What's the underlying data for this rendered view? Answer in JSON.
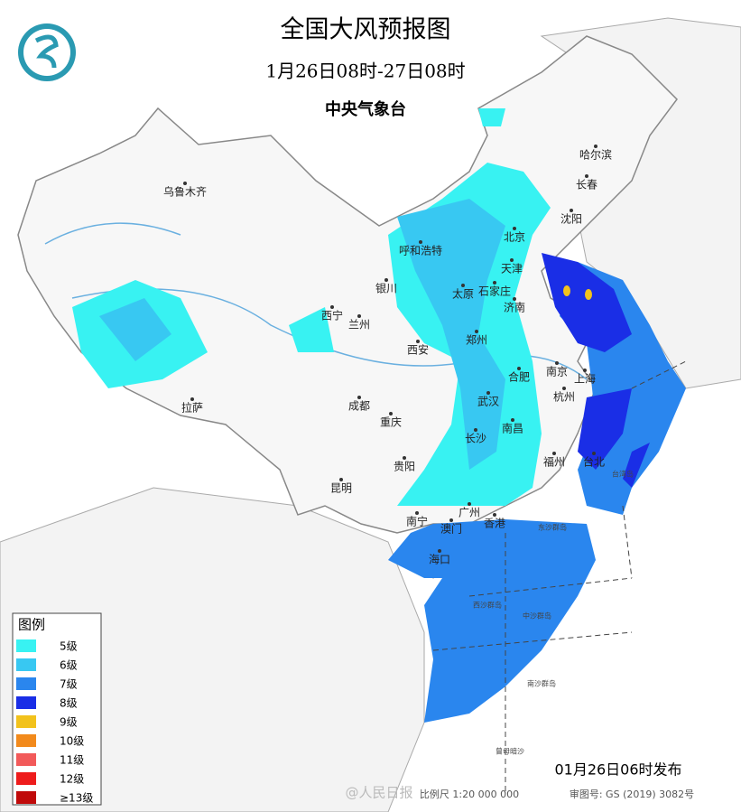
{
  "header": {
    "title": "全国大风预报图",
    "period": "1月26日08时-27日08时",
    "issuer": "中央气象台"
  },
  "legend": {
    "title": "图例",
    "items": [
      {
        "label": "5级",
        "color": "#38f2f2"
      },
      {
        "label": "6级",
        "color": "#38c8f2"
      },
      {
        "label": "7级",
        "color": "#2a86ee"
      },
      {
        "label": "8级",
        "color": "#1a2ee6"
      },
      {
        "label": "9级",
        "color": "#f2c21c"
      },
      {
        "label": "10级",
        "color": "#f28a1c"
      },
      {
        "label": "11级",
        "color": "#f25a5a"
      },
      {
        "label": "12级",
        "color": "#ee1c1c"
      },
      {
        "label": "≥13级",
        "color": "#c00a0a"
      }
    ]
  },
  "cities": [
    "乌鲁木齐",
    "哈尔滨",
    "长春",
    "沈阳",
    "呼和浩特",
    "北京",
    "天津",
    "石家庄",
    "太原",
    "银川",
    "西宁",
    "兰州",
    "济南",
    "郑州",
    "西安",
    "合肥",
    "南京",
    "上海",
    "杭州",
    "拉萨",
    "成都",
    "武汉",
    "重庆",
    "长沙",
    "南昌",
    "贵阳",
    "福州",
    "台北",
    "昆明",
    "南宁",
    "广州",
    "澳门",
    "香港",
    "海口"
  ],
  "islands": [
    "台湾岛",
    "东沙群岛",
    "西沙群岛",
    "中沙群岛",
    "南沙群岛",
    "曾母暗沙"
  ],
  "footer": {
    "issued": "01月26日06时发布",
    "scale": "比例尺 1:20 000 000",
    "review": "审图号: GS (2019) 3082号",
    "watermark": "@人民日报"
  }
}
